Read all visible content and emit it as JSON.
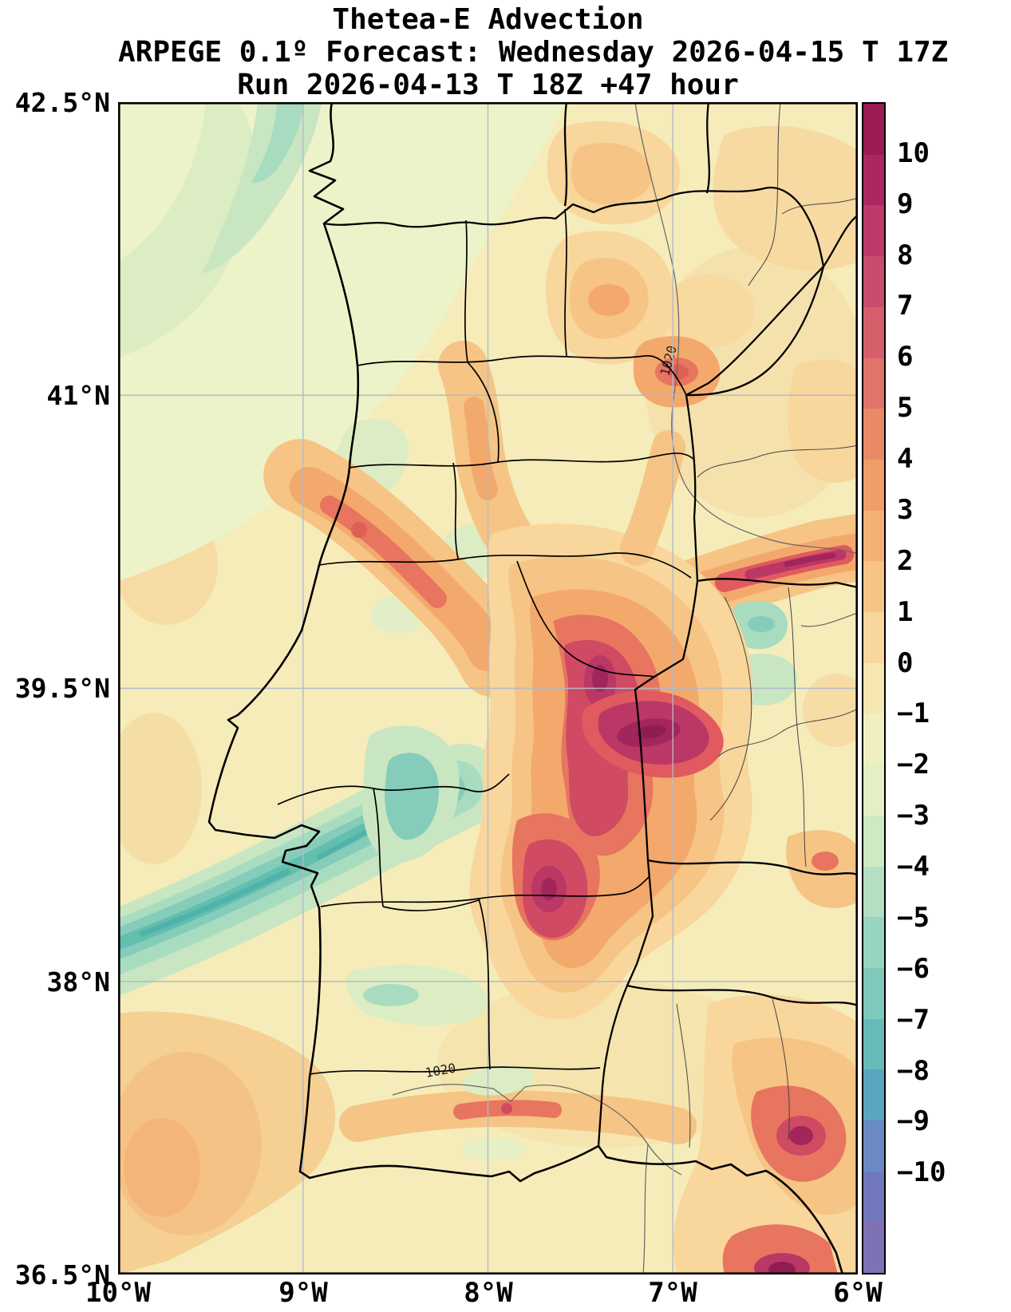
{
  "title": {
    "line1": "Thetea-E Advection",
    "line2": "ARPEGE 0.1º Forecast: Wednesday 2026-04-15 T 17Z",
    "line3": "Run 2026-04-13 T 18Z +47 hour"
  },
  "axes": {
    "y_tick_labels": [
      "42.5°N",
      "41°N",
      "39.5°N",
      "38°N",
      "36.5°N"
    ],
    "x_tick_labels": [
      "10°W",
      "9°W",
      "8°W",
      "7°W",
      "6°W"
    ]
  },
  "colorbar": {
    "tick_labels": [
      "10",
      "9",
      "8",
      "7",
      "6",
      "5",
      "4",
      "3",
      "2",
      "1",
      "0",
      "−1",
      "−2",
      "−3",
      "−4",
      "−5",
      "−6",
      "−7",
      "−8",
      "−9",
      "−10"
    ],
    "colors": [
      "#9b1b55",
      "#ac2762",
      "#bc3a6b",
      "#c94b6e",
      "#d65f6c",
      "#e17468",
      "#e98a66",
      "#f09e68",
      "#f4b272",
      "#f6c484",
      "#f8d69c",
      "#f6e7b2",
      "#f0efc2",
      "#e2f0c4",
      "#cdeac2",
      "#b4e0c2",
      "#98d5c0",
      "#7ec9bc",
      "#66bbb8",
      "#5aa6c0",
      "#6b8ac4",
      "#7178bc",
      "#7e72b4"
    ]
  },
  "annotations": {
    "isobar_label": "1020"
  },
  "grid_color": "#b3bac9",
  "chart_data": {
    "type": "heatmap",
    "title": "Thetea-E Advection",
    "subtitle": "ARPEGE 0.1º Forecast: Wednesday 2026-04-15 T 17Z",
    "run": "Run 2026-04-13 T 18Z +47 hour",
    "model": "ARPEGE",
    "resolution_deg": 0.1,
    "valid_time": "2026-04-15 17Z",
    "run_time": "2026-04-13 18Z",
    "lead_hours": 47,
    "lon_range_deg_west": [
      10,
      6
    ],
    "lat_range_deg_north": [
      36.5,
      42.5
    ],
    "x_tick_labels": [
      "10°W",
      "9°W",
      "8°W",
      "7°W",
      "6°W"
    ],
    "y_tick_labels": [
      "42.5°N",
      "41°N",
      "39.5°N",
      "38°N",
      "36.5°N"
    ],
    "colorbar_ticks": [
      10,
      9,
      8,
      7,
      6,
      5,
      4,
      3,
      2,
      1,
      0,
      -1,
      -2,
      -3,
      -4,
      -5,
      -6,
      -7,
      -8,
      -9,
      -10
    ],
    "grid": true,
    "legend_position": "right-colorbar",
    "isobar_contours": [
      {
        "label": "1020",
        "location": "northeast interior, rotated label"
      },
      {
        "label": "1020",
        "location": "near south coast, horizontal label"
      }
    ],
    "field_extremes": [
      {
        "feature": "broad advection maximum over central Alentejo",
        "lat": 38.8,
        "lon": -7.4,
        "approx_value": 10
      },
      {
        "feature": "dark maximum core east of Portalegre",
        "lat": 39.2,
        "lon": -7.15,
        "approx_value": 10
      },
      {
        "feature": "elongated maximum streak in NE (Spain)",
        "lat": 40.1,
        "lon": -6.4,
        "approx_value": 9
      },
      {
        "feature": "south-coast maximum near bottom edge",
        "lat": 36.6,
        "lon": -6.4,
        "approx_value": 9
      },
      {
        "feature": "secondary maximum SE interior",
        "lat": 37.2,
        "lon": -6.3,
        "approx_value": 7
      },
      {
        "feature": "Atlantic negative-advection band SW of Lisbon",
        "lat": 38.1,
        "lon": -9.6,
        "approx_value": -7
      },
      {
        "feature": "negative pocket east of Tagus estuary",
        "lat": 38.9,
        "lon": -8.45,
        "approx_value": -6
      },
      {
        "feature": "northwest pale negative background",
        "lat": 42.0,
        "lon": -9.3,
        "approx_value": -2
      },
      {
        "feature": "general weak positive background",
        "lat": 41.0,
        "lon": -8.0,
        "approx_value": 1
      }
    ]
  }
}
